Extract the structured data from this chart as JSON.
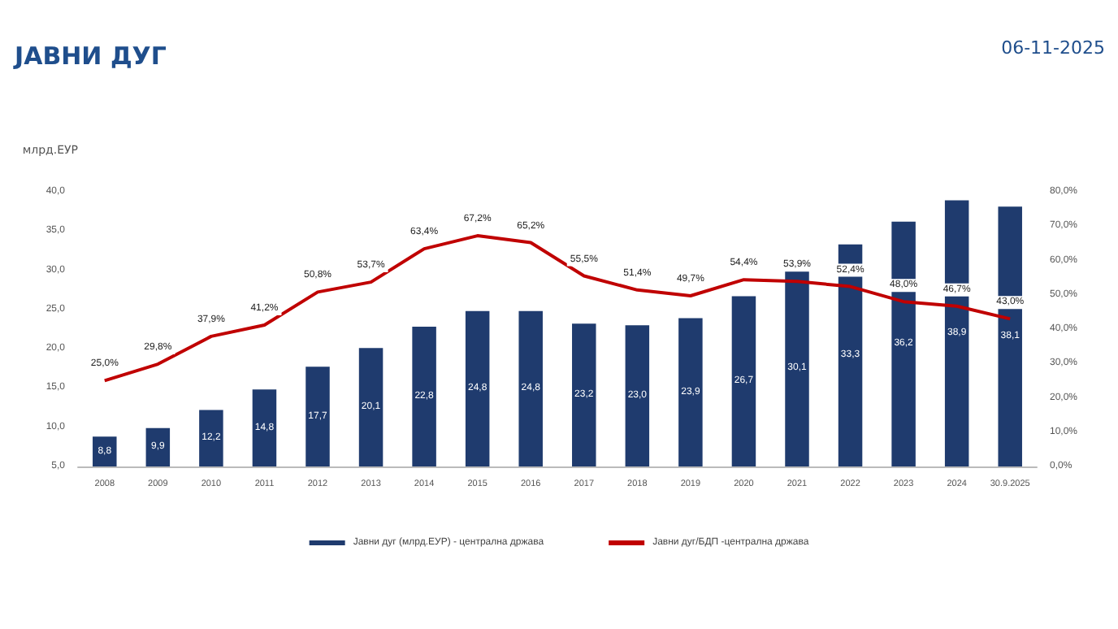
{
  "chart_data": {
    "type": "bar",
    "title": "ЈАВНИ ДУГ",
    "annotations": [
      "06-11-2025"
    ],
    "ylabel": "млрд.ЕУР",
    "categories": [
      "2008",
      "2009",
      "2010",
      "2011",
      "2012",
      "2013",
      "2014",
      "2015",
      "2016",
      "2017",
      "2018",
      "2019",
      "2020",
      "2021",
      "2022",
      "2023",
      "2024",
      "30.9.2025"
    ],
    "series": [
      {
        "name": "Јавни дуг (млрд.ЕУР) - централна држава",
        "color": "#1f3b6e",
        "values": [
          8.8,
          9.9,
          12.2,
          14.8,
          17.7,
          20.1,
          22.8,
          24.8,
          24.8,
          23.2,
          23.0,
          23.9,
          26.7,
          30.1,
          33.3,
          36.2,
          38.9,
          38.1
        ],
        "value_labels": [
          "8,8",
          "9,9",
          "12,2",
          "14,8",
          "17,7",
          "20,1",
          "22,8",
          "24,8",
          "24,8",
          "23,2",
          "23,0",
          "23,9",
          "26,7",
          "30,1",
          "33,3",
          "36,2",
          "38,9",
          "38,1"
        ]
      },
      {
        "name": "Јавни дуг/БДП -централна држава",
        "type": "line",
        "axis": "y2",
        "color": "#c00000",
        "values": [
          25.0,
          29.8,
          37.9,
          41.2,
          50.8,
          53.7,
          63.4,
          67.2,
          65.2,
          55.5,
          51.4,
          49.7,
          54.4,
          53.9,
          52.4,
          48.0,
          46.7,
          43.0
        ],
        "value_labels": [
          "25,0%",
          "29,8%",
          "37,9%",
          "41,2%",
          "50,8%",
          "53,7%",
          "63,4%",
          "67,2%",
          "65,2%",
          "55,5%",
          "51,4%",
          "49,7%",
          "54,4%",
          "53,9%",
          "52,4%",
          "48,0%",
          "46,7%",
          "43,0%"
        ]
      }
    ],
    "ylim": [
      5,
      40
    ],
    "yticks": [
      {
        "value": 5,
        "label": "5,0"
      },
      {
        "value": 10,
        "label": "10,0"
      },
      {
        "value": 15,
        "label": "15,0"
      },
      {
        "value": 20,
        "label": "20,0"
      },
      {
        "value": 25,
        "label": "25,0"
      },
      {
        "value": 30,
        "label": "30,0"
      },
      {
        "value": 35,
        "label": "35,0"
      },
      {
        "value": 40,
        "label": "40,0"
      }
    ],
    "y2lim": [
      0,
      80
    ],
    "y2ticks": [
      {
        "value": 0,
        "label": "0,0%"
      },
      {
        "value": 10,
        "label": "10,0%"
      },
      {
        "value": 20,
        "label": "20,0%"
      },
      {
        "value": 30,
        "label": "30,0%"
      },
      {
        "value": 40,
        "label": "40,0%"
      },
      {
        "value": 50,
        "label": "50,0%"
      },
      {
        "value": 60,
        "label": "60,0%"
      },
      {
        "value": 70,
        "label": "70,0%"
      },
      {
        "value": 80,
        "label": "80,0%"
      }
    ],
    "grid": false,
    "legend": "bottom",
    "marker": "none",
    "line_style": "solid"
  }
}
